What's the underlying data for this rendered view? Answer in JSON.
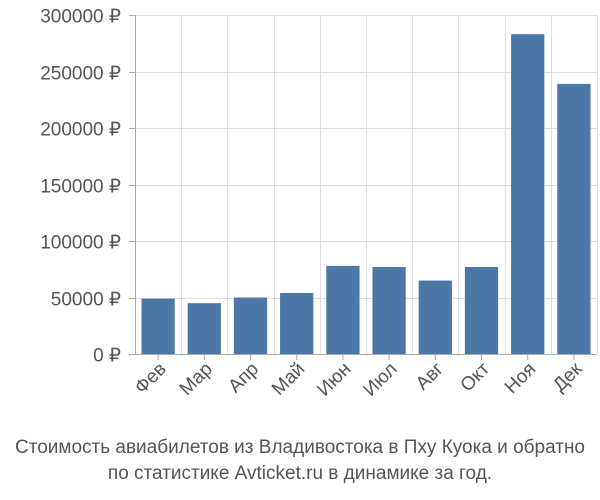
{
  "chart_data": {
    "type": "bar",
    "categories": [
      "Фев",
      "Мар",
      "Апр",
      "Май",
      "Июн",
      "Июл",
      "Авг",
      "Окт",
      "Ноя",
      "Дек"
    ],
    "values": [
      49000,
      45000,
      50000,
      54000,
      78000,
      77000,
      65000,
      77000,
      283000,
      239000
    ],
    "ylim": [
      0,
      300000
    ],
    "yticks": [
      0,
      50000,
      100000,
      150000,
      200000,
      250000,
      300000
    ],
    "currency_suffix": " ₽",
    "grid": true,
    "bar_color": "#4c78a8",
    "grid_color": "#dddddd",
    "axis_color": "#aaaaaa"
  },
  "caption": {
    "line1": "Стоимость авиабилетов из Владивостока в Пху Куока и обратно",
    "line2": "по статистике Avticket.ru в динамике за год."
  }
}
